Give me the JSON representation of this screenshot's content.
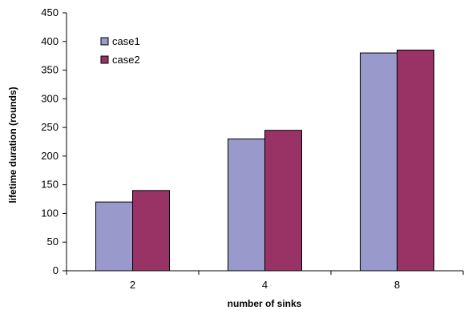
{
  "chart_data": {
    "type": "bar",
    "categories": [
      "2",
      "4",
      "8"
    ],
    "series": [
      {
        "name": "case1",
        "values": [
          120,
          230,
          380
        ]
      },
      {
        "name": "case2",
        "values": [
          140,
          245,
          385
        ]
      }
    ],
    "title": "",
    "xlabel": "number of sinks",
    "ylabel": "lifetime duration (rounds)",
    "ylim": [
      0,
      450
    ],
    "yticks": [
      0,
      50,
      100,
      150,
      200,
      250,
      300,
      350,
      400,
      450
    ],
    "grid": false,
    "legend_position": "top-left"
  },
  "colors": {
    "case1": "#9999CC",
    "case2": "#993366"
  }
}
